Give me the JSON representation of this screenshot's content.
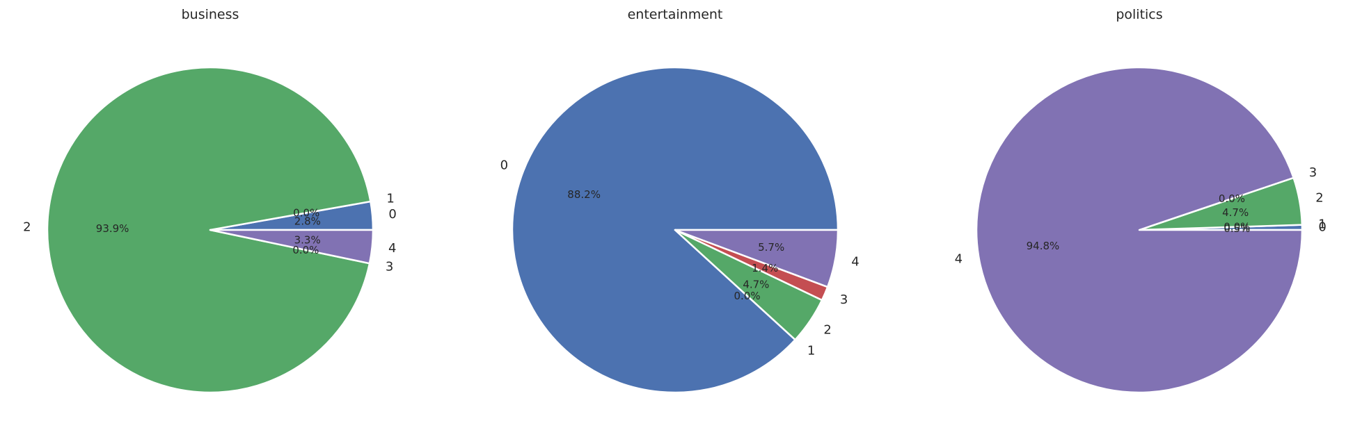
{
  "chart_data": [
    {
      "type": "pie",
      "title": "business",
      "slices": [
        {
          "label": "0",
          "percent_label": "2.8%",
          "value": 2.8,
          "color": "#4c72b0"
        },
        {
          "label": "1",
          "percent_label": "0.0%",
          "value": 0.0,
          "color": "#dd8452"
        },
        {
          "label": "2",
          "percent_label": "93.9%",
          "value": 93.9,
          "color": "#55a868"
        },
        {
          "label": "3",
          "percent_label": "0.0%",
          "value": 0.0,
          "color": "#c44e52"
        },
        {
          "label": "4",
          "percent_label": "3.3%",
          "value": 3.3,
          "color": "#8172b3"
        }
      ]
    },
    {
      "type": "pie",
      "title": "entertainment",
      "slices": [
        {
          "label": "0",
          "percent_label": "88.2%",
          "value": 88.2,
          "color": "#4c72b0"
        },
        {
          "label": "1",
          "percent_label": "0.0%",
          "value": 0.0,
          "color": "#dd8452"
        },
        {
          "label": "2",
          "percent_label": "4.7%",
          "value": 4.7,
          "color": "#55a868"
        },
        {
          "label": "3",
          "percent_label": "1.4%",
          "value": 1.4,
          "color": "#c44e52"
        },
        {
          "label": "4",
          "percent_label": "5.7%",
          "value": 5.7,
          "color": "#8172b3"
        }
      ]
    },
    {
      "type": "pie",
      "title": "politics",
      "slices": [
        {
          "label": "0",
          "percent_label": "0.5%",
          "value": 0.5,
          "color": "#4c72b0"
        },
        {
          "label": "1",
          "percent_label": "0.0%",
          "value": 0.0,
          "color": "#dd8452"
        },
        {
          "label": "2",
          "percent_label": "4.7%",
          "value": 4.7,
          "color": "#55a868"
        },
        {
          "label": "3",
          "percent_label": "0.0%",
          "value": 0.0,
          "color": "#c44e52"
        },
        {
          "label": "4",
          "percent_label": "94.8%",
          "value": 94.8,
          "color": "#8172b3"
        }
      ]
    }
  ]
}
